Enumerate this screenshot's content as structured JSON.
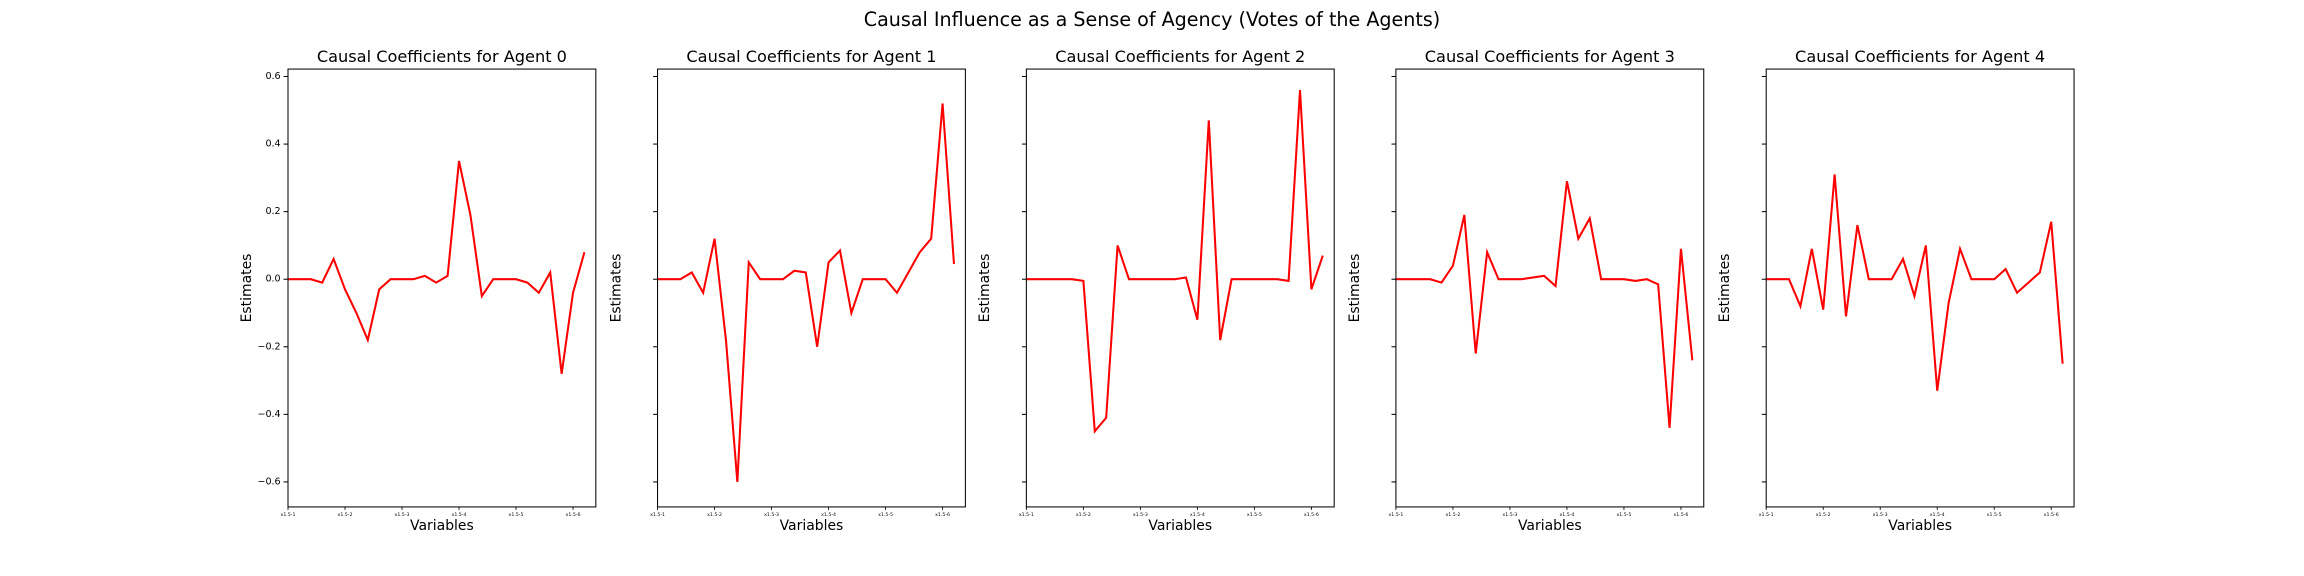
{
  "suptitle": "Causal Influence as a Sense of Agency (Votes of the Agents)",
  "chart_data": [
    {
      "type": "line",
      "title": "Causal Coefficients for Agent 0",
      "xlabel": "Variables",
      "ylabel": "Estimates",
      "color": "#ff0000",
      "categories": [
        "x1.5-1",
        null,
        null,
        null,
        null,
        "x1.5-2",
        null,
        null,
        null,
        null,
        "x1.5-3",
        null,
        null,
        null,
        null,
        "x1.5-4",
        null,
        null,
        null,
        null,
        "x1.5-5",
        null,
        null,
        null,
        null,
        "x1.5-6",
        null
      ],
      "values": [
        0,
        0,
        0,
        -0.01,
        0.06,
        -0.03,
        -0.1,
        -0.18,
        -0.03,
        0,
        0,
        0,
        0.01,
        -0.01,
        0.01,
        0.35,
        0.19,
        -0.05,
        0,
        0,
        0,
        -0.01,
        -0.04,
        0.02,
        -0.28,
        -0.04,
        0.08
      ],
      "ylim": [
        -0.674,
        0.622
      ],
      "yticks": [
        {
          "value": -0.6,
          "label": "−0.6"
        },
        {
          "value": -0.4,
          "label": "−0.4"
        },
        {
          "value": -0.2,
          "label": "−0.2"
        },
        {
          "value": 0,
          "label": "0.0"
        },
        0.2,
        0.4,
        0.6
      ]
    },
    {
      "type": "line",
      "title": "Causal Coefficients for Agent 1",
      "xlabel": "Variables",
      "ylabel": "Estimates",
      "color": "#ff0000",
      "sharey": true,
      "categories": [
        "x1.5-1",
        null,
        null,
        null,
        null,
        "x1.5-2",
        null,
        null,
        null,
        null,
        "x1.5-3",
        null,
        null,
        null,
        null,
        "x1.5-4",
        null,
        null,
        null,
        null,
        "x1.5-5",
        null,
        null,
        null,
        null,
        "x1.5-6",
        null
      ],
      "values": [
        0,
        0,
        0,
        0.02,
        -0.04,
        0.12,
        -0.18,
        -0.6,
        0.05,
        0,
        0,
        0,
        0.025,
        0.02,
        -0.2,
        0.05,
        0.085,
        -0.1,
        0,
        0,
        0,
        -0.04,
        0.02,
        0.08,
        0.12,
        0.52,
        0.045
      ],
      "ylim": [
        -0.674,
        0.622
      ],
      "yticks": [
        -0.6,
        -0.4,
        -0.2,
        0,
        0.2,
        0.4,
        0.6
      ]
    },
    {
      "type": "line",
      "title": "Causal Coefficients for Agent 2",
      "xlabel": "Variables",
      "ylabel": "Estimates",
      "color": "#ff0000",
      "sharey": true,
      "categories": [
        "x1.5-1",
        null,
        null,
        null,
        null,
        "x1.5-2",
        null,
        null,
        null,
        null,
        "x1.5-3",
        null,
        null,
        null,
        null,
        "x1.5-4",
        null,
        null,
        null,
        null,
        "x1.5-5",
        null,
        null,
        null,
        null,
        "x1.5-6",
        null
      ],
      "values": [
        0,
        0,
        0,
        0,
        0,
        -0.005,
        -0.45,
        -0.41,
        0.1,
        0,
        0,
        0,
        0,
        0,
        0.005,
        -0.12,
        0.47,
        -0.18,
        0,
        0,
        0,
        0,
        0,
        -0.005,
        0.56,
        -0.03,
        0.07
      ],
      "ylim": [
        -0.674,
        0.622
      ],
      "yticks": [
        -0.6,
        -0.4,
        -0.2,
        0,
        0.2,
        0.4,
        0.6
      ]
    },
    {
      "type": "line",
      "title": "Causal Coefficients for Agent 3",
      "xlabel": "Variables",
      "ylabel": "Estimates",
      "color": "#ff0000",
      "sharey": true,
      "categories": [
        "x1.5-1",
        null,
        null,
        null,
        null,
        "x1.5-2",
        null,
        null,
        null,
        null,
        "x1.5-3",
        null,
        null,
        null,
        null,
        "x1.5-4",
        null,
        null,
        null,
        null,
        "x1.5-5",
        null,
        null,
        null,
        null,
        "x1.5-6",
        null
      ],
      "values": [
        0,
        0,
        0,
        0,
        -0.01,
        0.04,
        0.19,
        -0.22,
        0.08,
        0,
        0,
        0,
        0.005,
        0.01,
        -0.02,
        0.29,
        0.12,
        0.18,
        0,
        0,
        0,
        -0.005,
        0,
        -0.015,
        -0.44,
        0.09,
        -0.24
      ],
      "ylim": [
        -0.674,
        0.622
      ],
      "yticks": [
        -0.6,
        -0.4,
        -0.2,
        0,
        0.2,
        0.4,
        0.6
      ]
    },
    {
      "type": "line",
      "title": "Causal Coefficients for Agent 4",
      "xlabel": "Variables",
      "ylabel": "Estimates",
      "color": "#ff0000",
      "sharey": true,
      "categories": [
        "x1.5-1",
        null,
        null,
        null,
        null,
        "x1.5-2",
        null,
        null,
        null,
        null,
        "x1.5-3",
        null,
        null,
        null,
        null,
        "x1.5-4",
        null,
        null,
        null,
        null,
        "x1.5-5",
        null,
        null,
        null,
        null,
        "x1.5-6",
        null
      ],
      "values": [
        0,
        0,
        0,
        -0.08,
        0.09,
        -0.09,
        0.31,
        -0.11,
        0.16,
        0,
        0,
        0,
        0.06,
        -0.05,
        0.1,
        -0.33,
        -0.07,
        0.09,
        0,
        0,
        0,
        0.03,
        -0.04,
        -0.01,
        0.02,
        0.17,
        -0.25
      ],
      "ylim": [
        -0.674,
        0.622
      ],
      "yticks": [
        -0.6,
        -0.4,
        -0.2,
        0,
        0.2,
        0.4,
        0.6
      ]
    }
  ]
}
